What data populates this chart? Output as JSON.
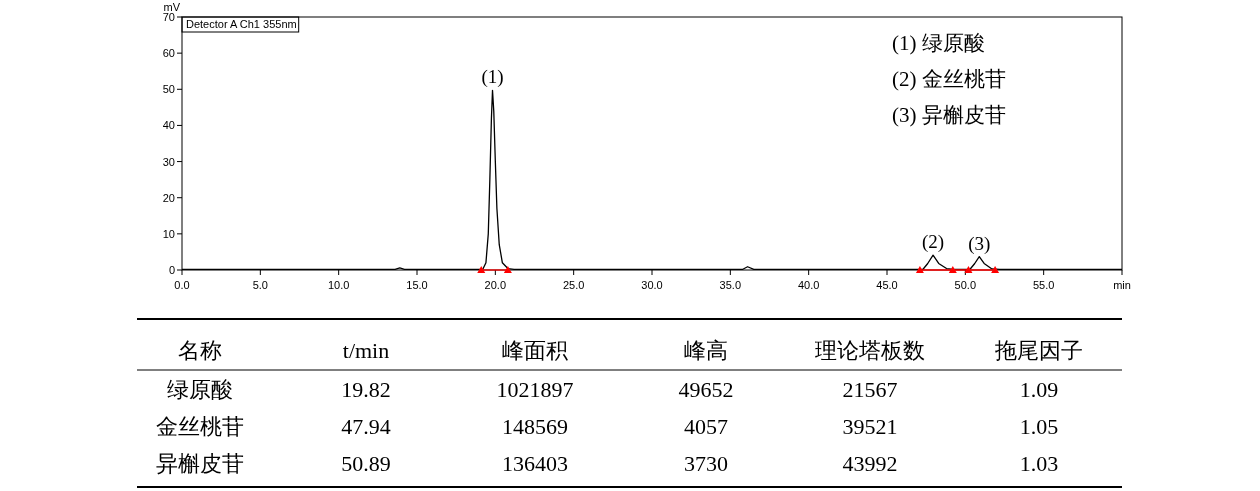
{
  "chart_data": [
    {
      "type": "line",
      "xlim": [
        0,
        60
      ],
      "ylim": [
        0,
        70
      ],
      "ylabel": "mV",
      "xticks": [
        {
          "value": 0,
          "label": "0.0"
        },
        {
          "value": 5,
          "label": "5.0"
        },
        {
          "value": 10,
          "label": "10.0"
        },
        {
          "value": 15,
          "label": "15.0"
        },
        {
          "value": 20,
          "label": "20.0"
        },
        {
          "value": 25,
          "label": "25.0"
        },
        {
          "value": 30,
          "label": "30.0"
        },
        {
          "value": 35,
          "label": "35.0"
        },
        {
          "value": 40,
          "label": "40.0"
        },
        {
          "value": 45,
          "label": "45.0"
        },
        {
          "value": 50,
          "label": "50.0"
        },
        {
          "value": 55,
          "label": "55.0"
        },
        {
          "value": 60,
          "label": "min"
        }
      ],
      "yticks": [
        0,
        10,
        20,
        30,
        40,
        50,
        60,
        70
      ],
      "annotations": [
        "Detector A Ch1 355nm",
        "(1)  绿原酸",
        "(2)  金丝桃苷",
        "(3)  异槲皮苷",
        {
          "text": "(1)",
          "x": 19.82,
          "y": 49.7
        },
        {
          "text": "(2)",
          "x": 47.94,
          "y": 4.1
        },
        {
          "text": "(3)",
          "x": 50.89,
          "y": 3.7
        }
      ],
      "series": [
        {
          "color": "#000000",
          "x": [
            0,
            13.6,
            13.9,
            14.2,
            19.2,
            19.4,
            19.55,
            19.65,
            19.75,
            19.82,
            19.9,
            20.0,
            20.1,
            20.25,
            20.45,
            20.8,
            21.2,
            35.8,
            36.1,
            36.5,
            47.3,
            47.6,
            47.94,
            48.3,
            48.8,
            49.3,
            50.3,
            50.6,
            50.89,
            51.2,
            51.7,
            52.2,
            60
          ],
          "values": [
            0.2,
            0.2,
            0.6,
            0.2,
            0.2,
            2,
            10,
            25,
            42,
            49.7,
            44,
            30,
            17,
            7,
            2,
            0.4,
            0.2,
            0.2,
            0.9,
            0.2,
            0.2,
            1.8,
            4.1,
            1.8,
            0.4,
            0.2,
            0.2,
            1.8,
            3.7,
            1.8,
            0.3,
            0.2,
            0.2
          ]
        },
        {
          "color": "#ff0000",
          "marker": "triangle",
          "x": [
            19.1,
            20.8
          ],
          "values": [
            0,
            0
          ]
        },
        {
          "color": "#ff0000",
          "marker": "triangle",
          "x": [
            47.1,
            49.2,
            50.2,
            51.9
          ],
          "values": [
            0,
            0,
            0,
            0
          ]
        }
      ]
    },
    {
      "type": "other",
      "categories": [
        "名称",
        "t/min",
        "峰面积",
        "峰高",
        "理论塔板数",
        "拖尾因子"
      ],
      "annotations": [
        "绿原酸",
        "19.82",
        "1021897",
        "49652",
        "21567",
        "1.09",
        "金丝桃苷",
        "47.94",
        "148569",
        "4057",
        "39521",
        "1.05",
        "异槲皮苷",
        "50.89",
        "136403",
        "3730",
        "43992",
        "1.03"
      ]
    }
  ]
}
